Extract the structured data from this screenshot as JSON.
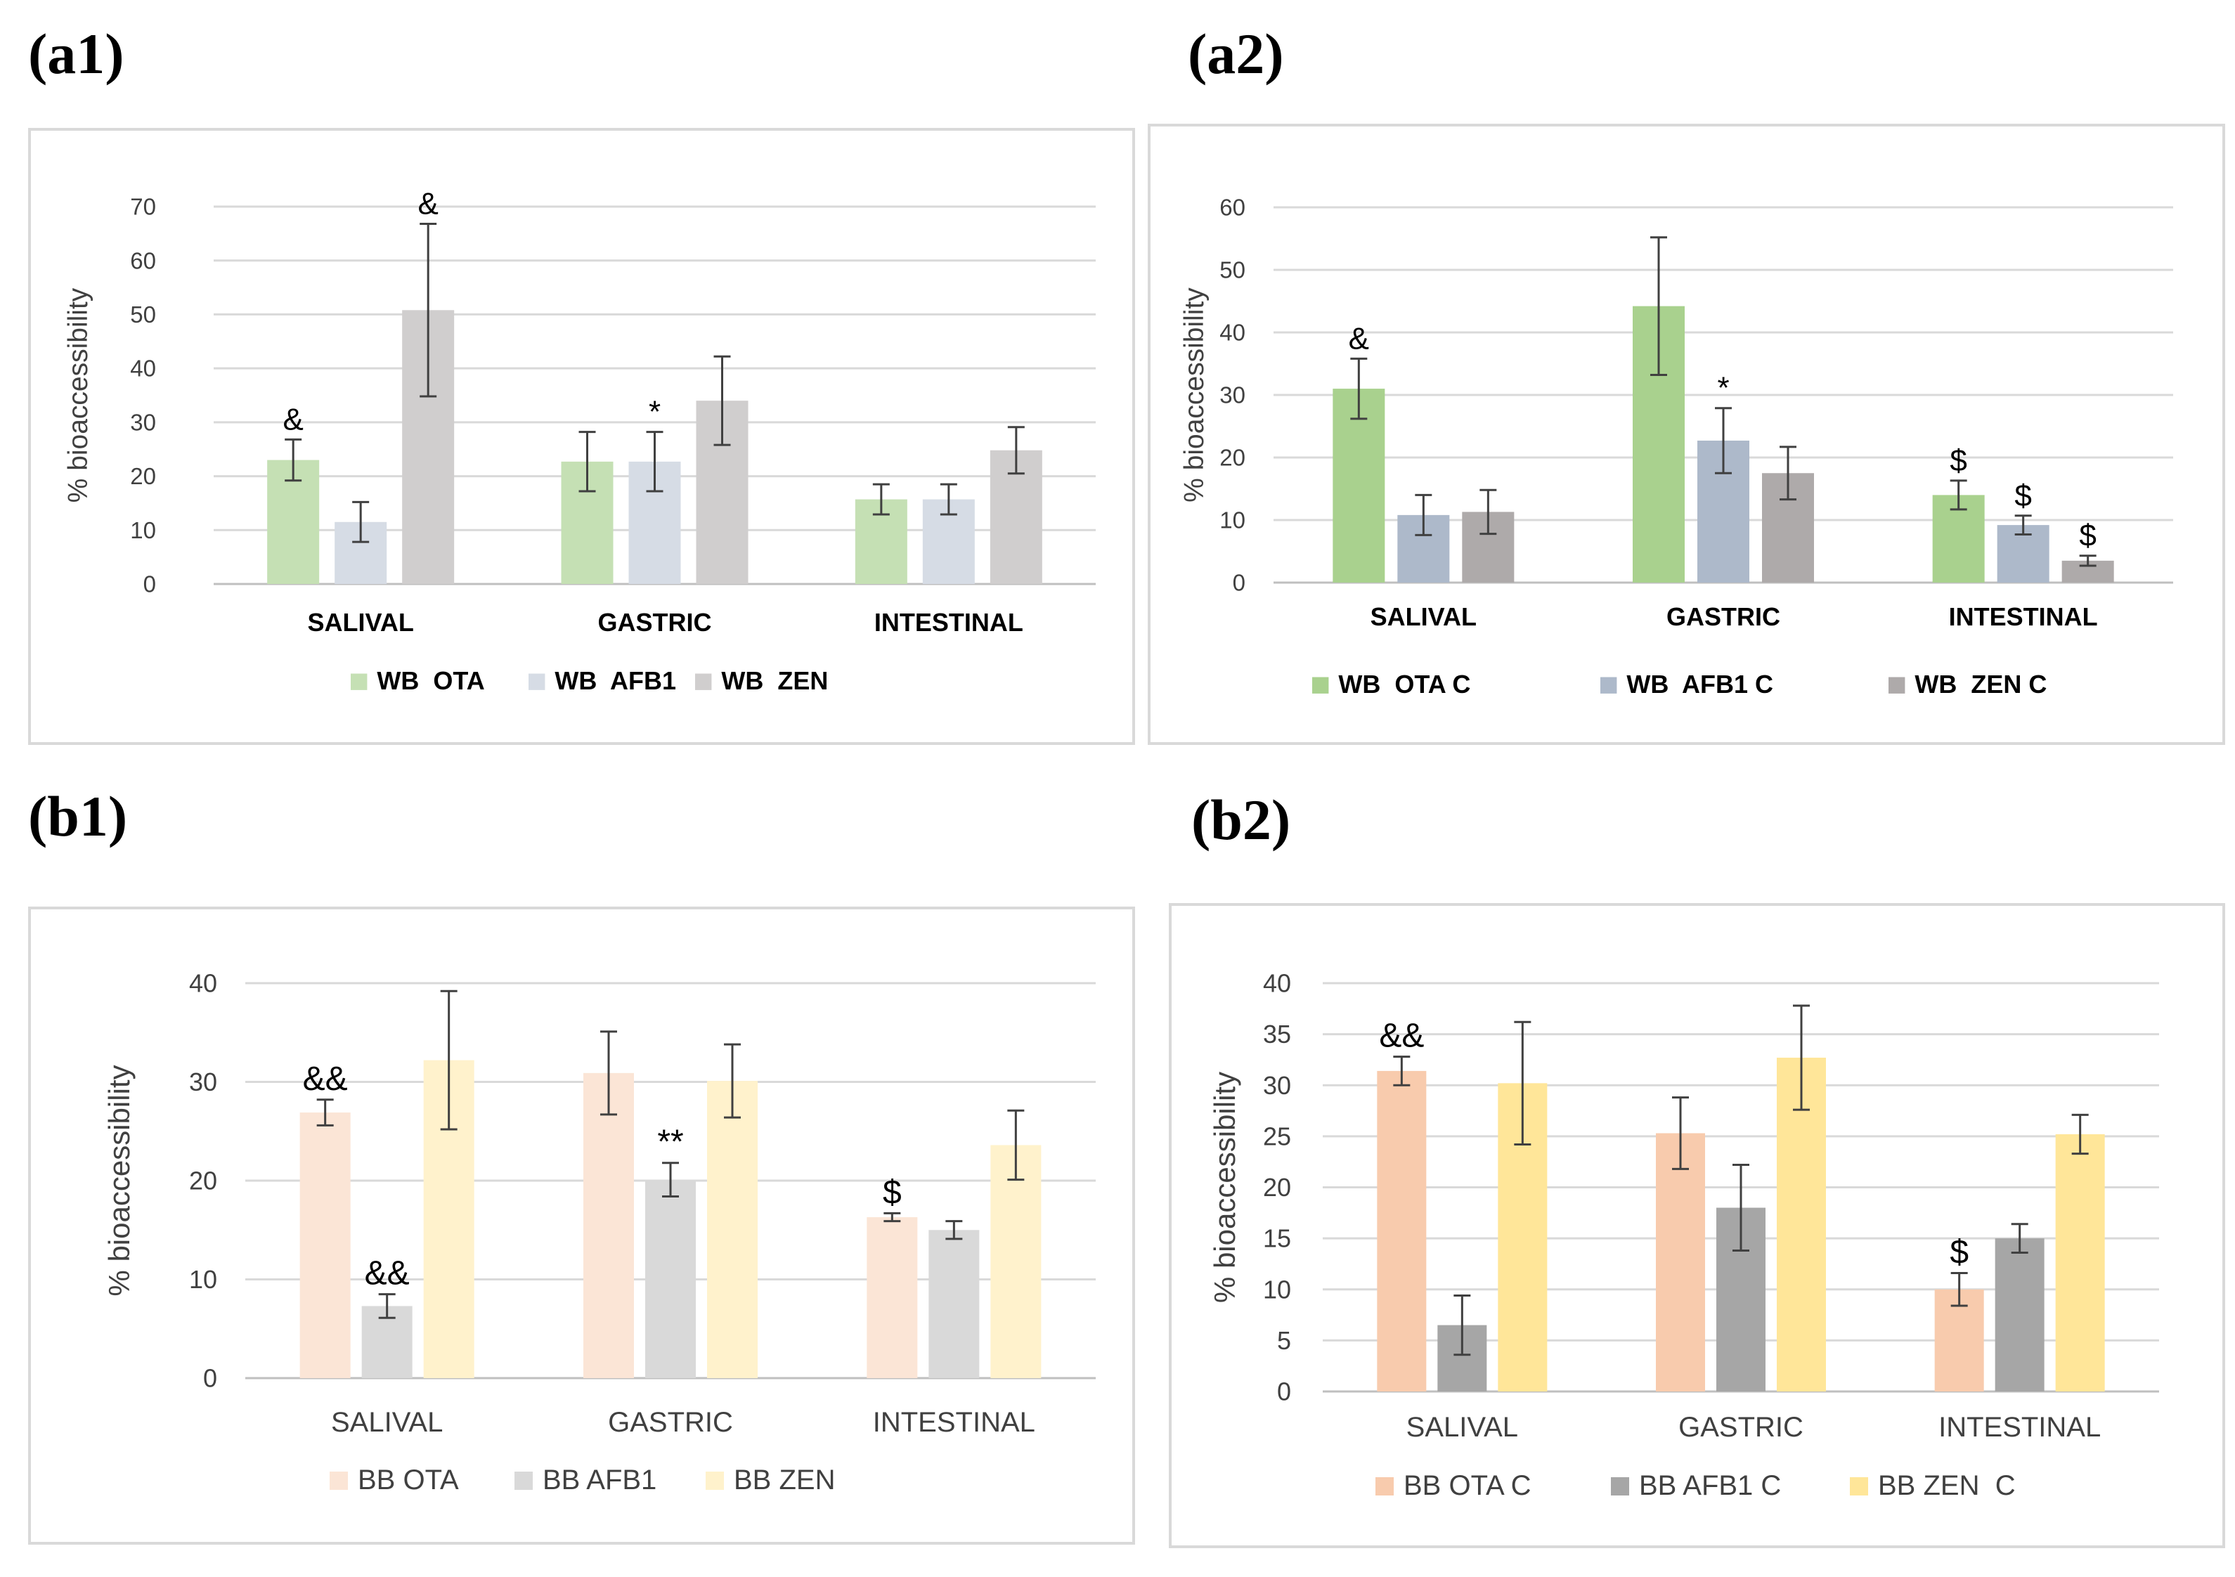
{
  "panels": [
    {
      "label": "(a1)",
      "ylabel": "% bioaccessibility",
      "categories": [
        "SALIVAL",
        "GASTRIC",
        "INTESTINAL"
      ],
      "bold_categories": true,
      "legend_bold": true,
      "legend_style": "compact",
      "ylim": [
        0,
        70
      ],
      "ticks": [
        0,
        10,
        20,
        30,
        40,
        50,
        60,
        70
      ],
      "series": [
        {
          "name": "WB  OTA",
          "color": "#c5e0b4",
          "values": [
            23,
            22.7,
            15.7
          ],
          "errors": [
            3.8,
            5.5,
            2.8
          ],
          "annotations": [
            "&",
            "",
            ""
          ]
        },
        {
          "name": "WB  AFB1",
          "color": "#d6dce5",
          "values": [
            11.5,
            22.7,
            15.7
          ],
          "errors": [
            3.7,
            5.5,
            2.8
          ],
          "annotations": [
            "",
            "*",
            ""
          ]
        },
        {
          "name": "WB  ZEN",
          "color": "#d0cece",
          "values": [
            50.8,
            34,
            24.8
          ],
          "errors": [
            16,
            8.2,
            4.3
          ],
          "annotations": [
            "&",
            "",
            ""
          ]
        }
      ]
    },
    {
      "label": "(a2)",
      "ylabel": "% bioaccessibility",
      "categories": [
        "SALIVAL",
        "GASTRIC",
        "INTESTINAL"
      ],
      "bold_categories": true,
      "legend_bold": true,
      "legend_style": "spread",
      "ylim": [
        0,
        60
      ],
      "ticks": [
        0,
        10,
        20,
        30,
        40,
        50,
        60
      ],
      "series": [
        {
          "name": "WB  OTA C",
          "color": "#a9d18e",
          "values": [
            31,
            44.2,
            14
          ],
          "errors": [
            4.8,
            11,
            2.3
          ],
          "annotations": [
            "&",
            "",
            "$"
          ]
        },
        {
          "name": "WB  AFB1 C",
          "color": "#adb9ca",
          "values": [
            10.8,
            22.7,
            9.2
          ],
          "errors": [
            3.2,
            5.2,
            1.5
          ],
          "annotations": [
            "",
            "*",
            "$"
          ]
        },
        {
          "name": "WB  ZEN C",
          "color": "#aeaaaa",
          "values": [
            11.3,
            17.5,
            3.5
          ],
          "errors": [
            3.5,
            4.2,
            0.8
          ],
          "annotations": [
            "",
            "",
            "$"
          ]
        }
      ]
    },
    {
      "label": "(b1)",
      "ylabel": "% bioaccessibility",
      "categories": [
        "SALIVAL",
        "GASTRIC",
        "INTESTINAL"
      ],
      "bold_categories": false,
      "legend_bold": false,
      "legend_style": "compact",
      "ylim": [
        0,
        40
      ],
      "ticks": [
        0,
        10,
        20,
        30,
        40
      ],
      "series": [
        {
          "name": "BB OTA",
          "color": "#fbe5d6",
          "values": [
            26.9,
            30.9,
            16.3
          ],
          "errors": [
            1.3,
            4.2,
            0.4
          ],
          "annotations": [
            "&&",
            "",
            "$"
          ]
        },
        {
          "name": "BB AFB1",
          "color": "#d9d9d9",
          "values": [
            7.3,
            20.1,
            15
          ],
          "errors": [
            1.2,
            1.7,
            0.9
          ],
          "annotations": [
            "&&",
            "**",
            ""
          ]
        },
        {
          "name": "BB ZEN",
          "color": "#fff2cc",
          "values": [
            32.2,
            30.1,
            23.6
          ],
          "errors": [
            7,
            3.7,
            3.5
          ],
          "annotations": [
            "",
            "",
            ""
          ]
        }
      ]
    },
    {
      "label": "(b2)",
      "ylabel": "% bioaccessibility",
      "categories": [
        "SALIVAL",
        "GASTRIC",
        "INTESTINAL"
      ],
      "bold_categories": false,
      "legend_bold": false,
      "legend_style": "spread",
      "ylim": [
        0,
        40
      ],
      "ticks": [
        0,
        5,
        10,
        15,
        20,
        25,
        30,
        35,
        40
      ],
      "series": [
        {
          "name": "BB OTA C",
          "color": "#f8cbad",
          "values": [
            31.4,
            25.3,
            10
          ],
          "errors": [
            1.4,
            3.5,
            1.6
          ],
          "annotations": [
            "&&",
            "",
            "$"
          ]
        },
        {
          "name": "BB AFB1 C",
          "color": "#a6a6a6",
          "values": [
            6.5,
            18,
            15
          ],
          "errors": [
            2.9,
            4.2,
            1.4
          ],
          "annotations": [
            "",
            "",
            ""
          ]
        },
        {
          "name": "BB ZEN  C",
          "color": "#ffe699",
          "values": [
            30.2,
            32.7,
            25.2
          ],
          "errors": [
            6,
            5.1,
            1.9
          ],
          "annotations": [
            "",
            "",
            ""
          ]
        }
      ]
    }
  ],
  "chart_data": [
    {
      "type": "bar",
      "title": "(a1)",
      "xlabel": "",
      "ylabel": "% bioaccessibility",
      "categories": [
        "SALIVAL",
        "GASTRIC",
        "INTESTINAL"
      ],
      "ylim": [
        0,
        70
      ],
      "series": [
        {
          "name": "WB  OTA",
          "values": [
            23,
            22.7,
            15.7
          ]
        },
        {
          "name": "WB  AFB1",
          "values": [
            11.5,
            22.7,
            15.7
          ]
        },
        {
          "name": "WB  ZEN",
          "values": [
            50.8,
            34,
            24.8
          ]
        }
      ]
    },
    {
      "type": "bar",
      "title": "(a2)",
      "xlabel": "",
      "ylabel": "% bioaccessibility",
      "categories": [
        "SALIVAL",
        "GASTRIC",
        "INTESTINAL"
      ],
      "ylim": [
        0,
        60
      ],
      "series": [
        {
          "name": "WB  OTA C",
          "values": [
            31,
            44.2,
            14
          ]
        },
        {
          "name": "WB  AFB1 C",
          "values": [
            10.8,
            22.7,
            9.2
          ]
        },
        {
          "name": "WB  ZEN C",
          "values": [
            11.3,
            17.5,
            3.5
          ]
        }
      ]
    },
    {
      "type": "bar",
      "title": "(b1)",
      "xlabel": "",
      "ylabel": "% bioaccessibility",
      "categories": [
        "SALIVAL",
        "GASTRIC",
        "INTESTINAL"
      ],
      "ylim": [
        0,
        40
      ],
      "series": [
        {
          "name": "BB OTA",
          "values": [
            26.9,
            30.9,
            16.3
          ]
        },
        {
          "name": "BB AFB1",
          "values": [
            7.3,
            20.1,
            15
          ]
        },
        {
          "name": "BB ZEN",
          "values": [
            32.2,
            30.1,
            23.6
          ]
        }
      ]
    },
    {
      "type": "bar",
      "title": "(b2)",
      "xlabel": "",
      "ylabel": "% bioaccessibility",
      "categories": [
        "SALIVAL",
        "GASTRIC",
        "INTESTINAL"
      ],
      "ylim": [
        0,
        40
      ],
      "series": [
        {
          "name": "BB OTA C",
          "values": [
            31.4,
            25.3,
            10
          ]
        },
        {
          "name": "BB AFB1 C",
          "values": [
            6.5,
            18,
            15
          ]
        },
        {
          "name": "BB ZEN  C",
          "values": [
            30.2,
            32.7,
            25.2
          ]
        }
      ]
    }
  ]
}
